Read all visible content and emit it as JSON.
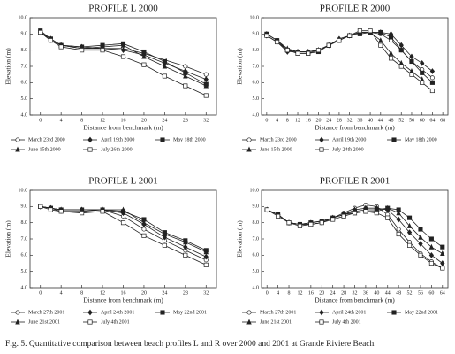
{
  "chart_data": [
    {
      "type": "line",
      "title": "PROFILE L 2000",
      "xlabel": "Distance from benchmark (m)",
      "ylabel": "Elevation (m)",
      "x": [
        0,
        2,
        4,
        8,
        12,
        16,
        20,
        24,
        28,
        32
      ],
      "xlim": [
        -2,
        34
      ],
      "xticks": [
        0,
        4,
        8,
        12,
        16,
        20,
        24,
        28,
        32
      ],
      "ylim": [
        4,
        10
      ],
      "yticks": [
        {
          "value": 4,
          "label": "4.0"
        },
        {
          "value": 5,
          "label": "5.0"
        },
        {
          "value": 6,
          "label": "6.0"
        },
        {
          "value": 7,
          "label": "7.0"
        },
        {
          "value": 8,
          "label": "8.0"
        },
        {
          "value": 9,
          "label": "9.0"
        },
        {
          "value": 10,
          "label": "10.0"
        }
      ],
      "series": [
        {
          "name": "March 23rd 2000",
          "color": "#222222",
          "marker": "circle-open",
          "values": [
            9.1,
            8.6,
            8.3,
            8.1,
            8.1,
            8.1,
            7.8,
            7.4,
            7.0,
            6.5
          ]
        },
        {
          "name": "April 19th 2000",
          "color": "#222222",
          "marker": "diamond",
          "values": [
            9.1,
            8.7,
            8.3,
            8.2,
            8.1,
            8.0,
            7.7,
            7.2,
            6.7,
            6.2
          ]
        },
        {
          "name": "May 18th 2000",
          "color": "#222222",
          "marker": "square",
          "values": [
            9.2,
            8.7,
            8.3,
            8.2,
            8.3,
            8.4,
            7.9,
            7.3,
            6.6,
            5.9
          ]
        },
        {
          "name": "June 15th 2000",
          "color": "#222222",
          "marker": "triangle",
          "values": [
            9.1,
            8.7,
            8.3,
            8.1,
            8.2,
            8.3,
            7.6,
            7.0,
            6.4,
            5.8
          ]
        },
        {
          "name": "July 26th 2000",
          "color": "#222222",
          "marker": "square-open",
          "values": [
            9.1,
            8.6,
            8.2,
            8.0,
            8.0,
            7.6,
            7.1,
            6.4,
            5.8,
            5.2
          ]
        }
      ]
    },
    {
      "type": "line",
      "title": "PROFILE R 2000",
      "xlabel": "Distance from benchmark (m)",
      "ylabel": "Elevation (m)",
      "x": [
        0,
        4,
        8,
        12,
        16,
        20,
        24,
        28,
        32,
        36,
        40,
        44,
        48,
        52,
        56,
        60,
        64
      ],
      "xlim": [
        -2,
        70
      ],
      "xticks": [
        0,
        4,
        8,
        12,
        16,
        20,
        24,
        28,
        32,
        36,
        40,
        44,
        48,
        52,
        56,
        60,
        64,
        68
      ],
      "ylim": [
        4,
        10
      ],
      "yticks": [
        {
          "value": 4,
          "label": "4.0"
        },
        {
          "value": 5,
          "label": "5.0"
        },
        {
          "value": 6,
          "label": "6.0"
        },
        {
          "value": 7,
          "label": "7.0"
        },
        {
          "value": 8,
          "label": "8.0"
        },
        {
          "value": 9,
          "label": "9.0"
        },
        {
          "value": 10,
          "label": "10.0"
        }
      ],
      "series": [
        {
          "name": "March 23rd 2000",
          "color": "#222222",
          "marker": "circle-open",
          "values": [
            9.0,
            8.6,
            8.0,
            7.9,
            7.9,
            8.0,
            8.3,
            8.6,
            8.9,
            9.1,
            9.1,
            9.0,
            8.6,
            8.0,
            7.3,
            6.8,
            6.3
          ]
        },
        {
          "name": "April 19th 2000",
          "color": "#222222",
          "marker": "diamond",
          "values": [
            8.9,
            8.5,
            7.9,
            7.9,
            7.9,
            8.0,
            8.3,
            8.7,
            8.9,
            9.1,
            9.1,
            9.1,
            9.0,
            8.3,
            7.6,
            7.2,
            6.7
          ]
        },
        {
          "name": "May 18th 2000",
          "color": "#222222",
          "marker": "square",
          "values": [
            9.0,
            8.6,
            8.0,
            7.8,
            7.8,
            7.9,
            8.3,
            8.6,
            8.9,
            9.0,
            9.1,
            9.1,
            8.8,
            8.0,
            7.3,
            6.6,
            6.0
          ]
        },
        {
          "name": "June 15th 2000",
          "color": "#222222",
          "marker": "triangle",
          "values": [
            9.0,
            8.6,
            8.1,
            7.9,
            7.9,
            8.0,
            8.3,
            8.6,
            8.9,
            9.1,
            9.1,
            8.6,
            7.8,
            7.2,
            6.7,
            6.2,
            null
          ]
        },
        {
          "name": "July 24th 2000",
          "color": "#222222",
          "marker": "square-open",
          "values": [
            8.9,
            8.5,
            8.0,
            7.8,
            7.8,
            8.0,
            8.3,
            8.6,
            8.9,
            9.2,
            9.2,
            8.3,
            7.5,
            7.0,
            6.5,
            6.0,
            5.5
          ]
        }
      ]
    },
    {
      "type": "line",
      "title": "PROFILE L 2001",
      "xlabel": "Distance from benchmark (m)",
      "ylabel": "Elevation (m)",
      "x": [
        0,
        2,
        4,
        8,
        12,
        16,
        20,
        24,
        28,
        32
      ],
      "xlim": [
        -2,
        34
      ],
      "xticks": [
        0,
        4,
        8,
        12,
        16,
        20,
        24,
        28,
        32
      ],
      "ylim": [
        4,
        10
      ],
      "yticks": [
        {
          "value": 4,
          "label": "4.0"
        },
        {
          "value": 5,
          "label": "5.0"
        },
        {
          "value": 6,
          "label": "6.0"
        },
        {
          "value": 7,
          "label": "7.0"
        },
        {
          "value": 8,
          "label": "8.0"
        },
        {
          "value": 9,
          "label": "9.0"
        },
        {
          "value": 10,
          "label": "10.0"
        }
      ],
      "series": [
        {
          "name": "March 27th 2001",
          "color": "#222222",
          "marker": "circle-open",
          "values": [
            9.0,
            8.9,
            8.7,
            8.7,
            8.8,
            8.4,
            7.6,
            6.9,
            6.3,
            5.7
          ]
        },
        {
          "name": "April 24th 2001",
          "color": "#222222",
          "marker": "diamond",
          "values": [
            9.0,
            8.9,
            8.8,
            8.8,
            8.8,
            8.6,
            7.9,
            7.1,
            6.5,
            5.9
          ]
        },
        {
          "name": "May 22nd 2001",
          "color": "#222222",
          "marker": "square",
          "values": [
            9.0,
            8.9,
            8.8,
            8.8,
            8.8,
            8.7,
            8.2,
            7.4,
            6.9,
            6.3
          ]
        },
        {
          "name": "June 21st 2001",
          "color": "#222222",
          "marker": "triangle",
          "values": [
            9.0,
            8.9,
            8.8,
            8.8,
            8.8,
            8.8,
            8.0,
            7.3,
            6.8,
            6.2
          ]
        },
        {
          "name": "July 4th 2001",
          "color": "#222222",
          "marker": "square-open",
          "values": [
            9.0,
            8.8,
            8.7,
            8.6,
            8.7,
            8.0,
            7.2,
            6.6,
            6.0,
            5.4
          ]
        }
      ]
    },
    {
      "type": "line",
      "title": "PROFILE R 2001",
      "xlabel": "Distance from benchmark (m)",
      "ylabel": "Elevation (m)",
      "x": [
        0,
        4,
        8,
        12,
        16,
        20,
        24,
        28,
        32,
        36,
        40,
        44,
        48,
        52,
        56,
        60,
        64
      ],
      "xlim": [
        -2,
        66
      ],
      "xticks": [
        0,
        4,
        8,
        12,
        16,
        20,
        24,
        28,
        32,
        36,
        40,
        44,
        48,
        52,
        56,
        60,
        64
      ],
      "ylim": [
        4,
        10
      ],
      "yticks": [
        {
          "value": 4,
          "label": "4.0"
        },
        {
          "value": 5,
          "label": "5.0"
        },
        {
          "value": 6,
          "label": "6.0"
        },
        {
          "value": 7,
          "label": "7.0"
        },
        {
          "value": 8,
          "label": "8.0"
        },
        {
          "value": 9,
          "label": "9.0"
        },
        {
          "value": 10,
          "label": "10.0"
        }
      ],
      "series": [
        {
          "name": "March 27th 2001",
          "color": "#222222",
          "marker": "circle-open",
          "values": [
            8.8,
            8.5,
            8.0,
            7.9,
            7.9,
            8.0,
            8.3,
            8.6,
            8.9,
            9.1,
            9.0,
            8.5,
            7.6,
            6.8,
            6.1,
            5.6,
            5.2
          ]
        },
        {
          "name": "April 24th 2001",
          "color": "#222222",
          "marker": "diamond",
          "values": [
            8.8,
            8.5,
            8.0,
            7.9,
            7.9,
            8.0,
            8.3,
            8.5,
            8.8,
            8.9,
            8.9,
            8.8,
            8.2,
            7.4,
            6.7,
            6.0,
            5.5
          ]
        },
        {
          "name": "May 22nd 2001",
          "color": "#222222",
          "marker": "square",
          "values": [
            8.8,
            8.5,
            8.0,
            7.9,
            8.0,
            8.1,
            8.3,
            8.5,
            8.7,
            8.8,
            8.8,
            8.9,
            8.8,
            8.3,
            7.6,
            7.0,
            6.5
          ]
        },
        {
          "name": "June 21st 2001",
          "color": "#222222",
          "marker": "triangle",
          "values": [
            8.8,
            8.5,
            8.0,
            7.9,
            8.0,
            8.1,
            8.3,
            8.5,
            8.6,
            8.7,
            8.7,
            8.9,
            8.6,
            7.8,
            7.1,
            6.5,
            6.1
          ]
        },
        {
          "name": "July 4th 2001",
          "color": "#222222",
          "marker": "square-open",
          "values": [
            8.8,
            8.4,
            8.0,
            7.8,
            7.9,
            8.0,
            8.2,
            8.4,
            8.6,
            8.7,
            8.6,
            8.3,
            7.3,
            6.6,
            6.0,
            5.5,
            5.2
          ]
        }
      ]
    }
  ],
  "caption": "Fig. 5. Quantitative comparison between beach profiles L and R over 2000 and 2001 at Grande Riviere Beach."
}
